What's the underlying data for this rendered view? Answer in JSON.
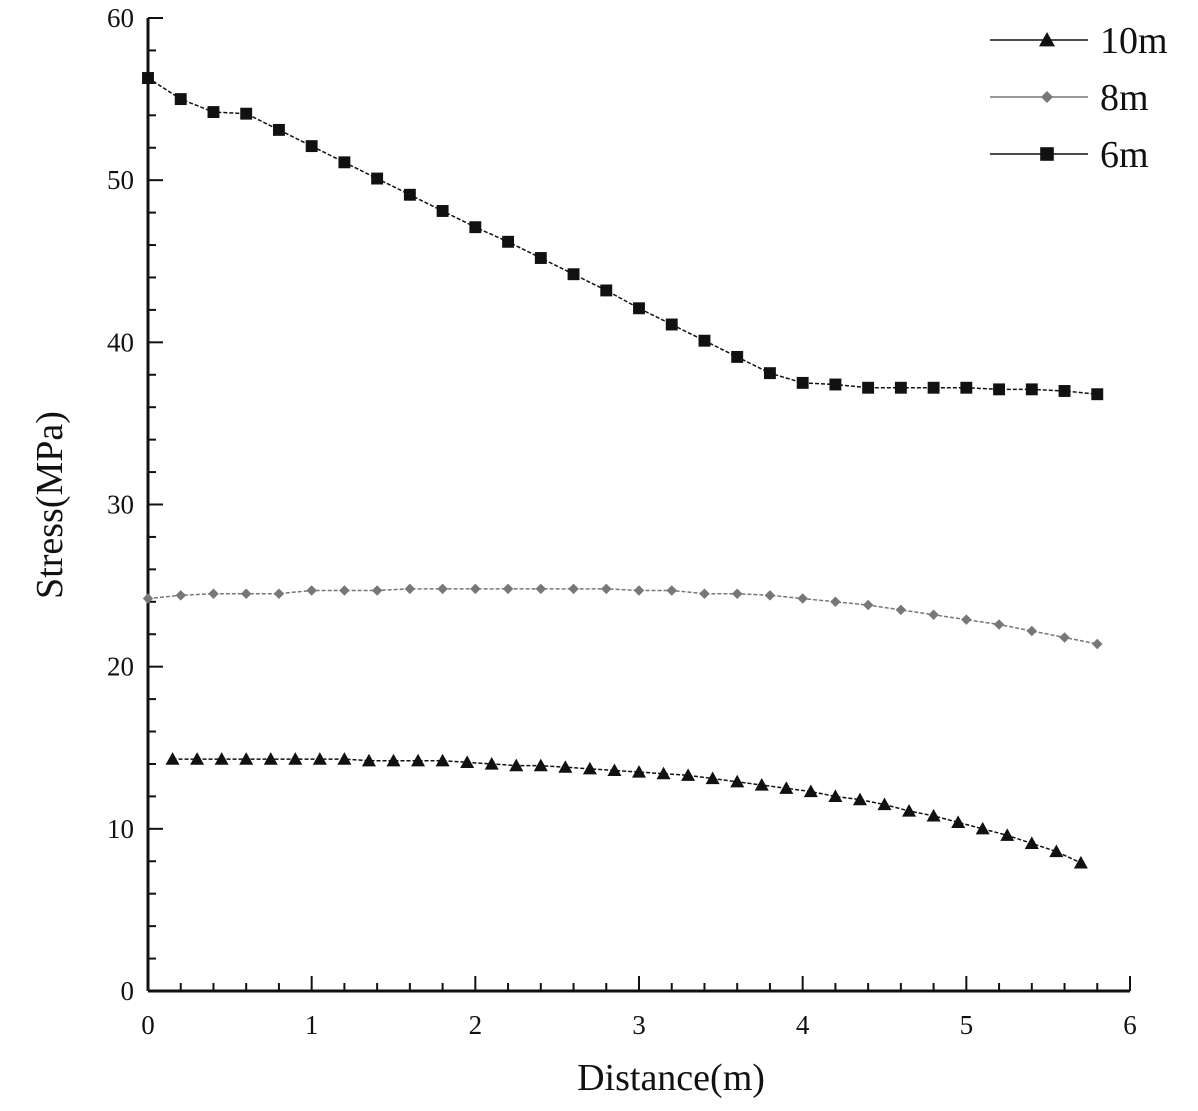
{
  "chart_data": {
    "type": "line",
    "title": "",
    "xlabel": "Distance(m)",
    "ylabel": "Stress(MPa)",
    "xlim": [
      0,
      6
    ],
    "ylim": [
      0,
      60
    ],
    "x_ticks": [
      "0",
      "1",
      "2",
      "3",
      "4",
      "5",
      "6"
    ],
    "y_ticks": [
      "0",
      "10",
      "20",
      "30",
      "40",
      "50",
      "60"
    ],
    "grid": false,
    "legend_position": "top-right",
    "series": [
      {
        "name": "10m",
        "marker": "triangle",
        "color": "#111111",
        "x": [
          0.15,
          0.3,
          0.45,
          0.6,
          0.75,
          0.9,
          1.05,
          1.2,
          1.35,
          1.5,
          1.65,
          1.8,
          1.95,
          2.1,
          2.25,
          2.4,
          2.55,
          2.7,
          2.85,
          3.0,
          3.15,
          3.3,
          3.45,
          3.6,
          3.75,
          3.9,
          4.05,
          4.2,
          4.35,
          4.5,
          4.65,
          4.8,
          4.95,
          5.1,
          5.25,
          5.4,
          5.55,
          5.7
        ],
        "y": [
          14.3,
          14.3,
          14.3,
          14.3,
          14.3,
          14.3,
          14.3,
          14.3,
          14.2,
          14.2,
          14.2,
          14.2,
          14.1,
          14.0,
          13.9,
          13.9,
          13.8,
          13.7,
          13.6,
          13.5,
          13.4,
          13.3,
          13.1,
          12.9,
          12.7,
          12.5,
          12.3,
          12.0,
          11.8,
          11.5,
          11.1,
          10.8,
          10.4,
          10.0,
          9.6,
          9.1,
          8.6,
          7.9
        ]
      },
      {
        "name": "8m",
        "marker": "diamond",
        "color": "#777777",
        "x": [
          0.0,
          0.2,
          0.4,
          0.6,
          0.8,
          1.0,
          1.2,
          1.4,
          1.6,
          1.8,
          2.0,
          2.2,
          2.4,
          2.6,
          2.8,
          3.0,
          3.2,
          3.4,
          3.6,
          3.8,
          4.0,
          4.2,
          4.4,
          4.6,
          4.8,
          5.0,
          5.2,
          5.4,
          5.6,
          5.8
        ],
        "y": [
          24.2,
          24.4,
          24.5,
          24.5,
          24.5,
          24.7,
          24.7,
          24.7,
          24.8,
          24.8,
          24.8,
          24.8,
          24.8,
          24.8,
          24.8,
          24.7,
          24.7,
          24.5,
          24.5,
          24.4,
          24.2,
          24.0,
          23.8,
          23.5,
          23.2,
          22.9,
          22.6,
          22.2,
          21.8,
          21.4
        ]
      },
      {
        "name": "6m",
        "marker": "square",
        "color": "#111111",
        "x": [
          0.0,
          0.2,
          0.4,
          0.6,
          0.8,
          1.0,
          1.2,
          1.4,
          1.6,
          1.8,
          2.0,
          2.2,
          2.4,
          2.6,
          2.8,
          3.0,
          3.2,
          3.4,
          3.6,
          3.8,
          4.0,
          4.2,
          4.4,
          4.6,
          4.8,
          5.0,
          5.2,
          5.4,
          5.6,
          5.8
        ],
        "y": [
          56.3,
          55.0,
          54.2,
          54.1,
          53.1,
          52.1,
          51.1,
          50.1,
          49.1,
          48.1,
          47.1,
          46.2,
          45.2,
          44.2,
          43.2,
          42.1,
          41.1,
          40.1,
          39.1,
          38.1,
          37.5,
          37.4,
          37.2,
          37.2,
          37.2,
          37.2,
          37.1,
          37.1,
          37.0,
          36.8
        ]
      }
    ]
  }
}
